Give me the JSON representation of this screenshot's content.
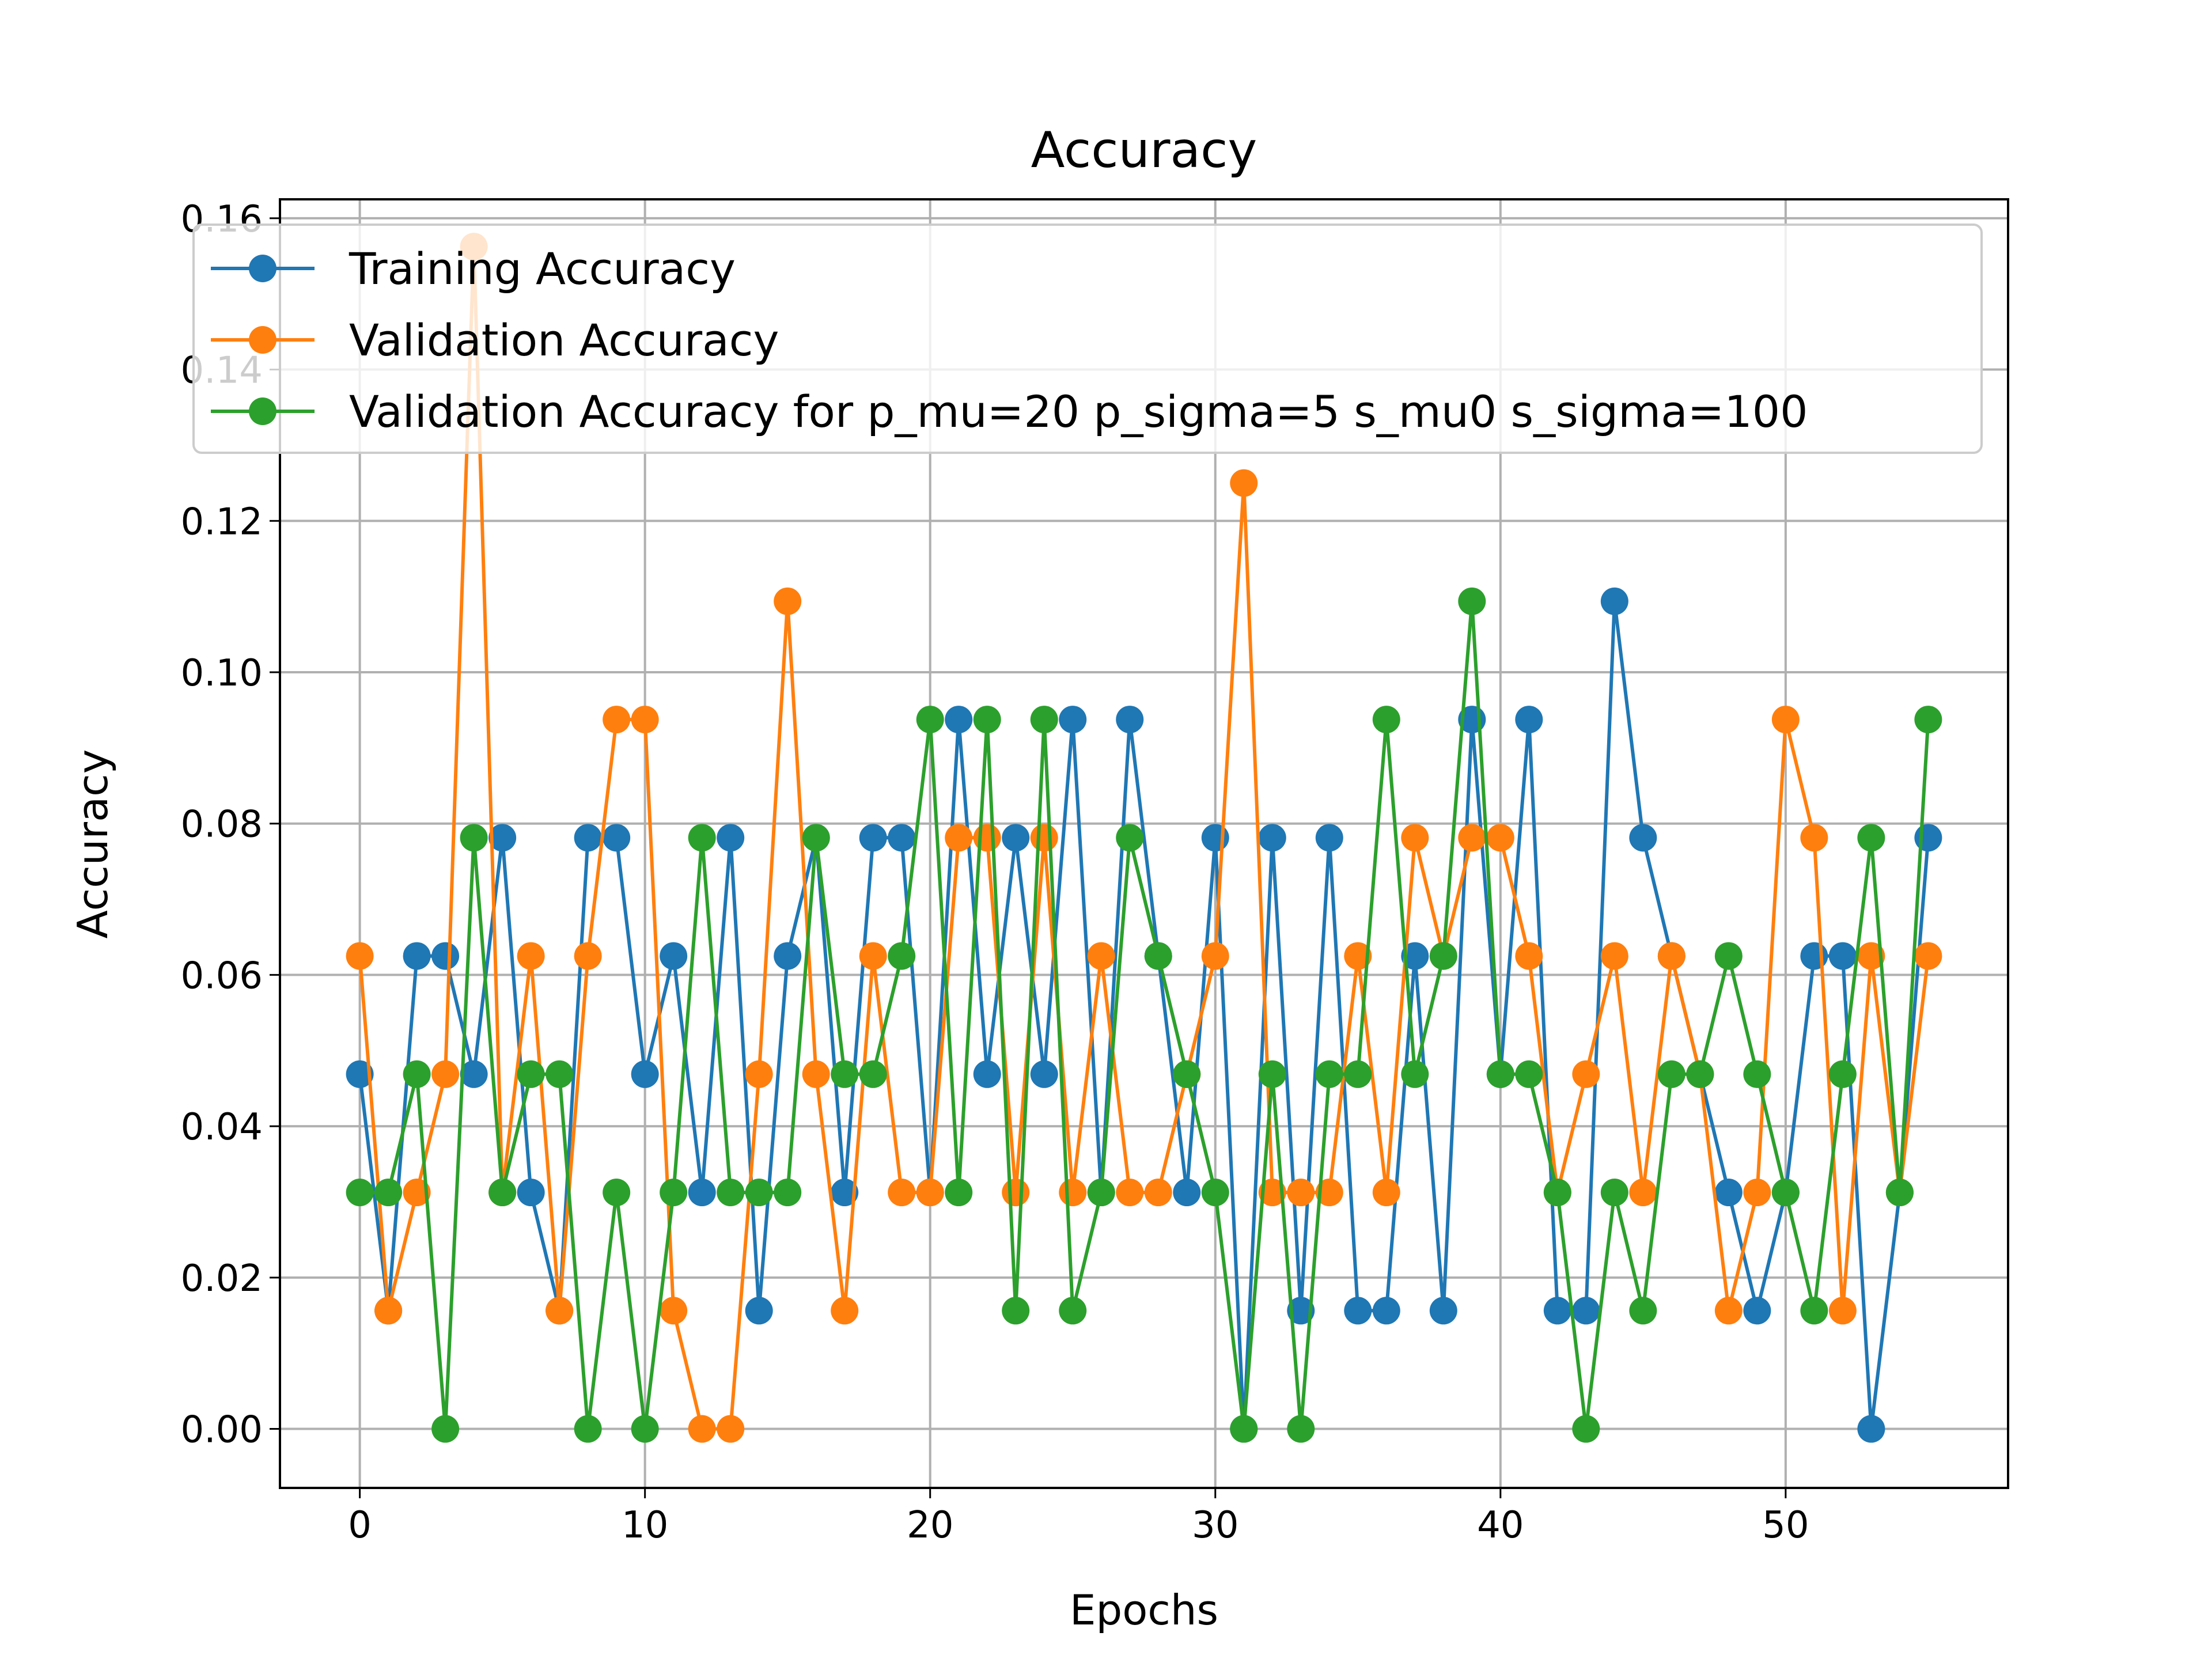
{
  "chart_data": {
    "type": "line",
    "title": "Accuracy",
    "xlabel": "Epochs",
    "ylabel": "Accuracy",
    "xlim": [
      -2.8,
      57.8
    ],
    "ylim": [
      -0.0078,
      0.1625
    ],
    "xticks": [
      0,
      10,
      20,
      30,
      40,
      50
    ],
    "yticks": [
      0.0,
      0.02,
      0.04,
      0.06,
      0.08,
      0.1,
      0.12,
      0.14,
      0.16
    ],
    "ytick_labels": [
      "0.00",
      "0.02",
      "0.04",
      "0.06",
      "0.08",
      "0.10",
      "0.12",
      "0.14",
      "0.16"
    ],
    "grid": true,
    "legend_position": "top-left",
    "x": [
      0,
      1,
      2,
      3,
      4,
      5,
      6,
      7,
      8,
      9,
      10,
      11,
      12,
      13,
      14,
      15,
      16,
      17,
      18,
      19,
      20,
      21,
      22,
      23,
      24,
      25,
      26,
      27,
      28,
      29,
      30,
      31,
      32,
      33,
      34,
      35,
      36,
      37,
      38,
      39,
      40,
      41,
      42,
      43,
      44,
      45,
      46,
      47,
      48,
      49,
      50,
      51,
      52,
      53,
      54,
      55
    ],
    "series": [
      {
        "name": "Training Accuracy",
        "color": "#1f77b4",
        "values": [
          0.046875,
          0.015625,
          0.0625,
          0.0625,
          0.046875,
          0.078125,
          0.03125,
          0.015625,
          0.078125,
          0.078125,
          0.046875,
          0.0625,
          0.03125,
          0.078125,
          0.015625,
          0.0625,
          0.078125,
          0.03125,
          0.078125,
          0.078125,
          0.03125,
          0.09375,
          0.046875,
          0.078125,
          0.046875,
          0.09375,
          0.03125,
          0.09375,
          0.0625,
          0.03125,
          0.078125,
          0.0,
          0.078125,
          0.015625,
          0.078125,
          0.015625,
          0.015625,
          0.0625,
          0.015625,
          0.09375,
          0.046875,
          0.09375,
          0.015625,
          0.015625,
          0.109375,
          0.078125,
          0.0625,
          0.046875,
          0.03125,
          0.015625,
          0.03125,
          0.0625,
          0.0625,
          0.0,
          0.03125,
          0.078125
        ]
      },
      {
        "name": "Validation Accuracy",
        "color": "#ff7f0e",
        "values": [
          0.0625,
          0.015625,
          0.03125,
          0.046875,
          0.15625,
          0.03125,
          0.0625,
          0.015625,
          0.0625,
          0.09375,
          0.09375,
          0.015625,
          0.0,
          0.0,
          0.046875,
          0.109375,
          0.046875,
          0.015625,
          0.0625,
          0.03125,
          0.03125,
          0.078125,
          0.078125,
          0.03125,
          0.078125,
          0.03125,
          0.0625,
          0.03125,
          0.03125,
          0.046875,
          0.0625,
          0.125,
          0.03125,
          0.03125,
          0.03125,
          0.0625,
          0.03125,
          0.078125,
          0.0625,
          0.078125,
          0.078125,
          0.0625,
          0.03125,
          0.046875,
          0.0625,
          0.03125,
          0.0625,
          0.046875,
          0.015625,
          0.03125,
          0.09375,
          0.078125,
          0.015625,
          0.0625,
          0.03125,
          0.0625
        ]
      },
      {
        "name": "Validation Accuracy for p_mu=20 p_sigma=5 s_mu0 s_sigma=100",
        "color": "#2ca02c",
        "values": [
          0.03125,
          0.03125,
          0.046875,
          0.0,
          0.078125,
          0.03125,
          0.046875,
          0.046875,
          0.0,
          0.03125,
          0.0,
          0.03125,
          0.078125,
          0.03125,
          0.03125,
          0.03125,
          0.078125,
          0.046875,
          0.046875,
          0.0625,
          0.09375,
          0.03125,
          0.09375,
          0.015625,
          0.09375,
          0.015625,
          0.03125,
          0.078125,
          0.0625,
          0.046875,
          0.03125,
          0.0,
          0.046875,
          0.0,
          0.046875,
          0.046875,
          0.09375,
          0.046875,
          0.0625,
          0.109375,
          0.046875,
          0.046875,
          0.03125,
          0.0,
          0.03125,
          0.015625,
          0.046875,
          0.046875,
          0.0625,
          0.046875,
          0.03125,
          0.015625,
          0.046875,
          0.078125,
          0.03125,
          0.09375
        ]
      }
    ]
  }
}
